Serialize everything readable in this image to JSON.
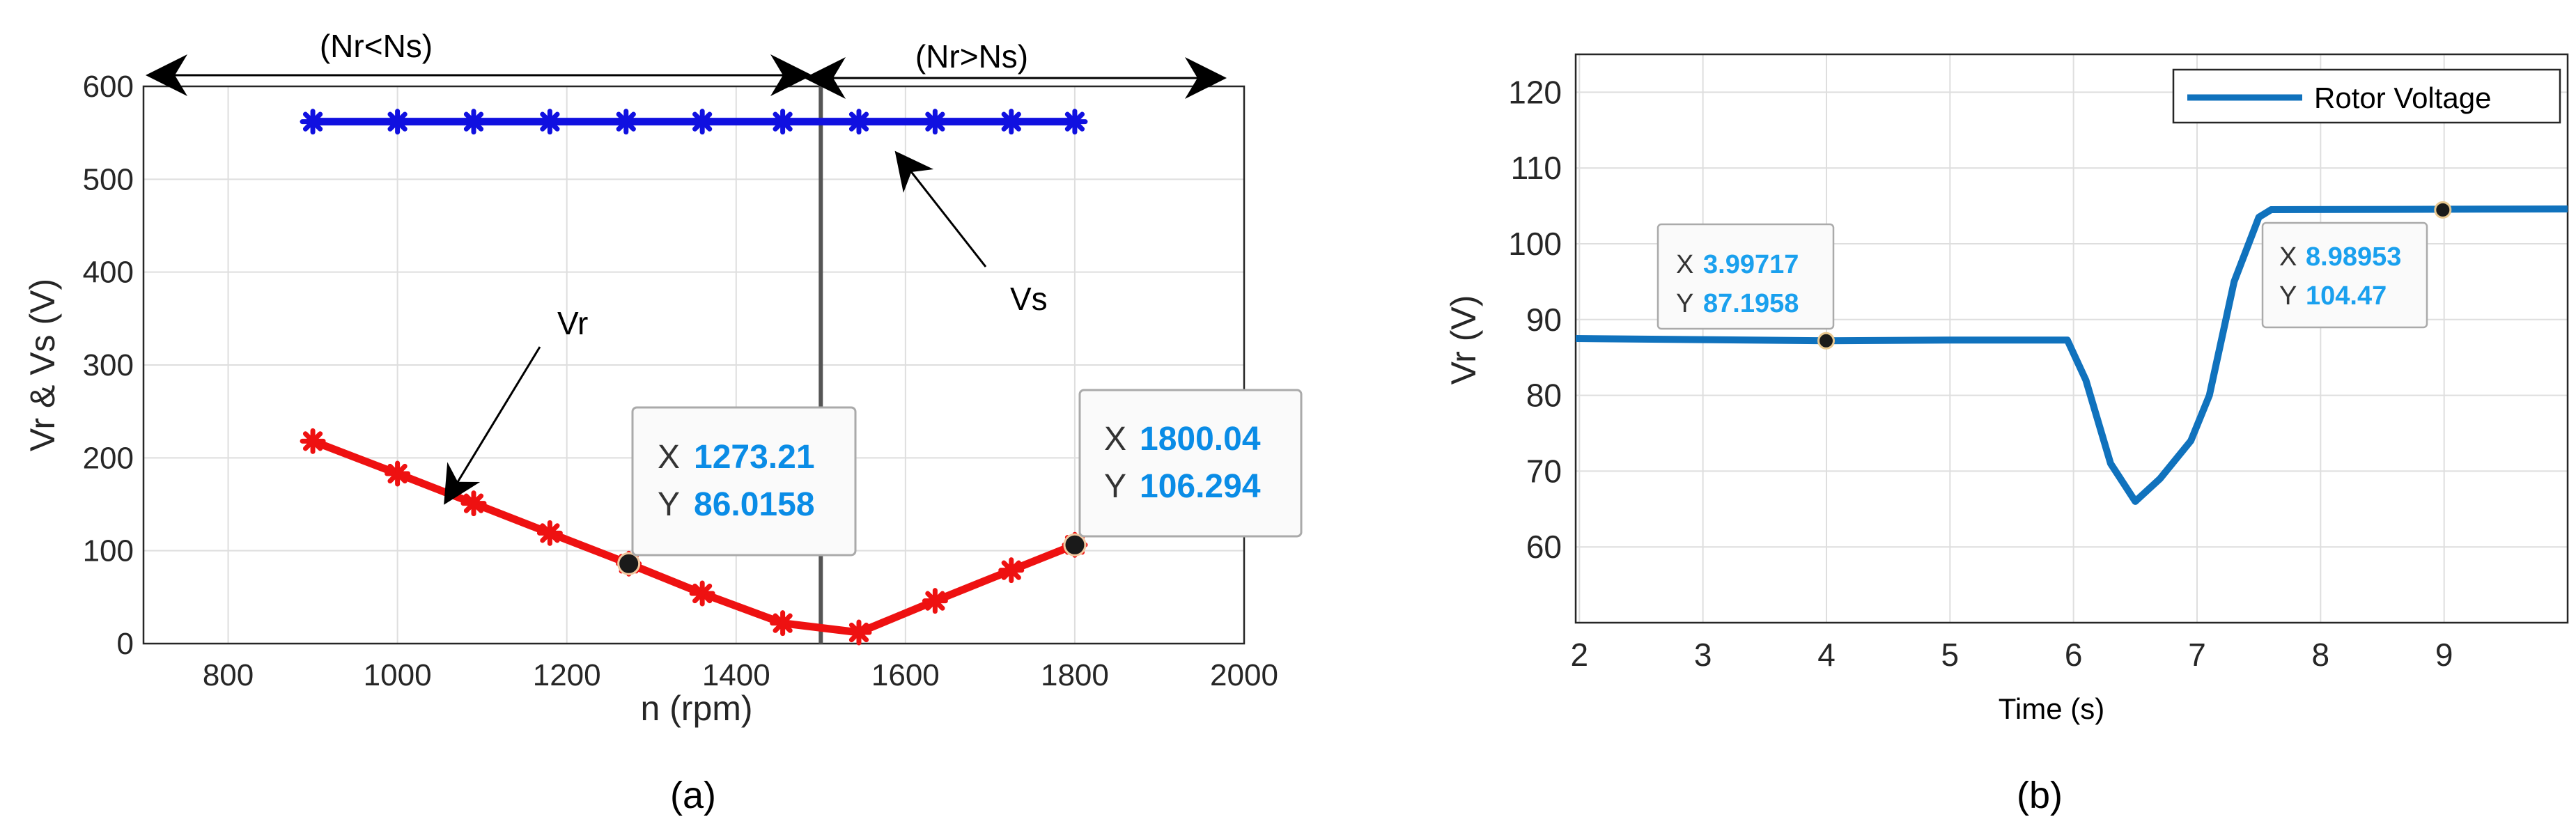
{
  "colors": {
    "vs": "#1010e0",
    "vr": "#ee1111",
    "rotor": "#1072bd",
    "datatip_value": "#0a8ce6",
    "grid": "#dedede",
    "axis": "#262626"
  },
  "chart_data": [
    {
      "type": "line",
      "panel_label": "(a)",
      "xlabel": "n (rpm)",
      "ylabel": "Vr & Vs (V)",
      "xlim": [
        700,
        2000
      ],
      "ylim": [
        0,
        600
      ],
      "xticks": [
        800,
        1000,
        1200,
        1400,
        1600,
        1800,
        2000
      ],
      "yticks": [
        0,
        100,
        200,
        300,
        400,
        500,
        600
      ],
      "grid": true,
      "synchronous_line_x": 1500,
      "series": [
        {
          "name": "Vs",
          "marker": "asterisk",
          "x": [
            900,
            1000,
            1090,
            1180,
            1270,
            1360,
            1455,
            1545,
            1635,
            1725,
            1800
          ],
          "y": [
            562,
            562,
            562,
            562,
            562,
            562,
            562,
            562,
            562,
            562,
            562
          ]
        },
        {
          "name": "Vr",
          "marker": "asterisk",
          "x": [
            900,
            1000,
            1090,
            1180,
            1273.21,
            1360,
            1455,
            1545,
            1635,
            1725,
            1800.04
          ],
          "y": [
            218,
            183,
            151,
            119,
            86.0158,
            54,
            22,
            12,
            46,
            79,
            106.294
          ]
        }
      ],
      "annotations": {
        "left_region": "(Nr<Ns)",
        "right_region": "(Nr>Ns)",
        "vr_label": "Vr",
        "vs_label": "Vs"
      },
      "datatips": [
        {
          "x_key": "X",
          "x_value": "1273.21",
          "y_key": "Y",
          "y_value": "86.0158",
          "x": 1273.21,
          "y": 86.0158
        },
        {
          "x_key": "X",
          "x_value": "1800.04",
          "y_key": "Y",
          "y_value": "106.294",
          "x": 1800.04,
          "y": 106.294
        }
      ]
    },
    {
      "type": "line",
      "panel_label": "(b)",
      "xlabel": "Time (s)",
      "ylabel": "Vr  (V)",
      "xlim": [
        1.97,
        10
      ],
      "ylim": [
        50,
        125
      ],
      "xticks": [
        2,
        3,
        4,
        5,
        6,
        7,
        8,
        9
      ],
      "yticks": [
        60,
        70,
        80,
        90,
        100,
        110,
        120
      ],
      "grid": true,
      "legend": {
        "label": "Rotor Voltage",
        "position": "top-right"
      },
      "series": [
        {
          "name": "Rotor Voltage",
          "x": [
            1.97,
            4.0,
            5.0,
            5.95,
            6.1,
            6.3,
            6.5,
            6.7,
            6.95,
            7.1,
            7.3,
            7.5,
            7.6,
            10
          ],
          "y": [
            87.5,
            87.2,
            87.3,
            87.3,
            82,
            71,
            66,
            69,
            74,
            80,
            95,
            103.5,
            104.5,
            104.6
          ]
        }
      ],
      "datatips": [
        {
          "x_key": "X",
          "x_value": "3.99717",
          "y_key": "Y",
          "y_value": "87.1958",
          "x": 3.99717,
          "y": 87.1958
        },
        {
          "x_key": "X",
          "x_value": "8.98953",
          "y_key": "Y",
          "y_value": "104.47",
          "x": 8.98953,
          "y": 104.47
        }
      ]
    }
  ]
}
